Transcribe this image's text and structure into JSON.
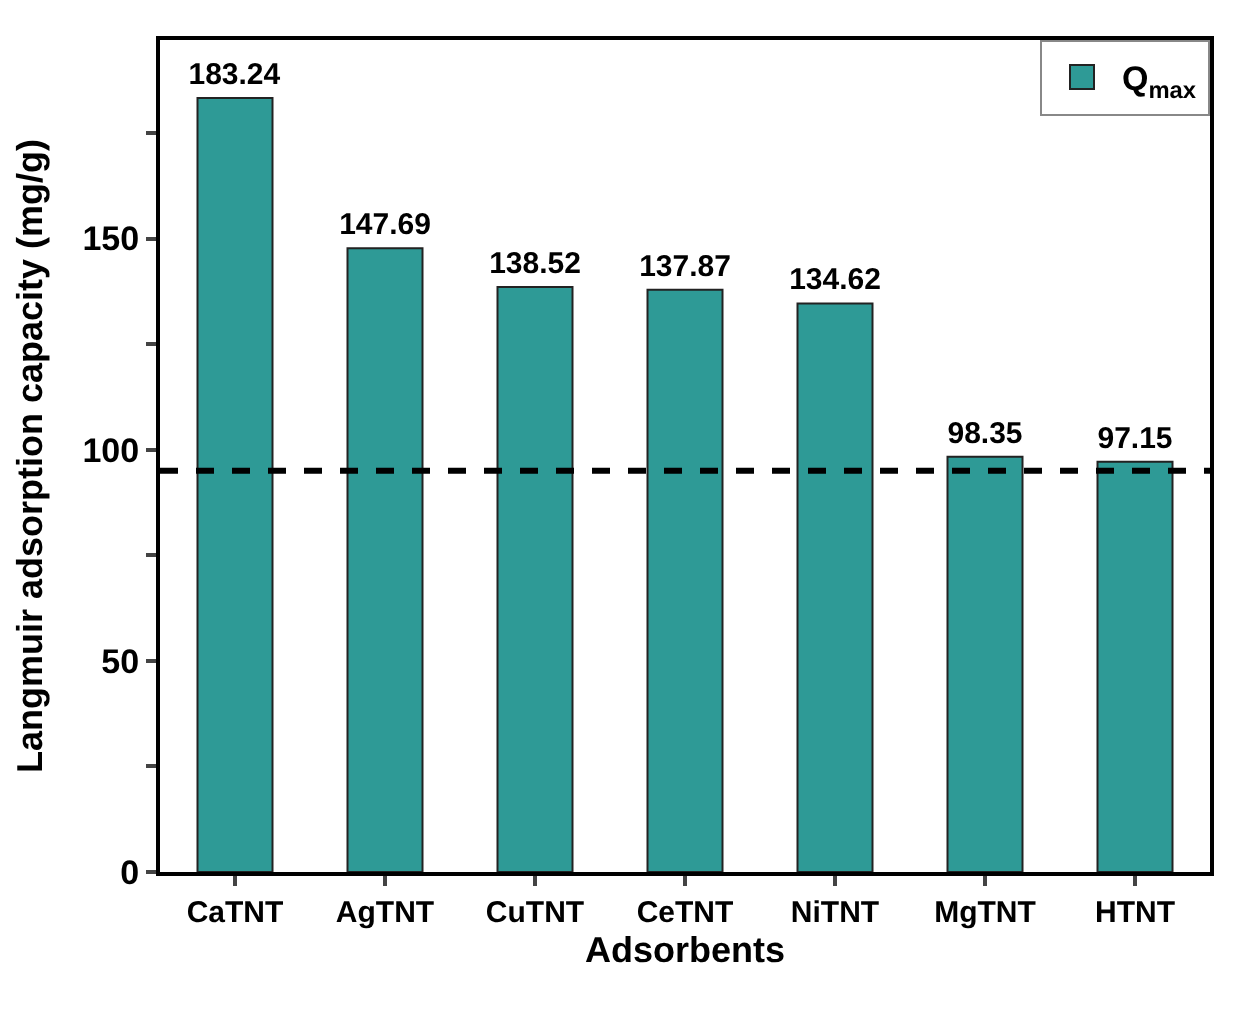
{
  "chart_data": {
    "type": "bar",
    "xlabel": "Adsorbents",
    "ylabel": "Langmuir adsorption capacity (mg/g)",
    "categories": [
      "CaTNT",
      "AgTNT",
      "CuTNT",
      "CeTNT",
      "NiTNT",
      "MgTNT",
      "HTNT"
    ],
    "series": [
      {
        "name": "Q$_{max}$",
        "color": "#2e9a96",
        "values": [
          183.24,
          147.69,
          138.52,
          137.87,
          134.62,
          98.35,
          97.15
        ]
      }
    ],
    "data_labels": true,
    "ylim": [
      0,
      197
    ],
    "yticks": [
      0,
      {
        "value": 25,
        "label": null
      },
      50,
      {
        "value": 75,
        "label": null
      },
      100,
      {
        "value": 125,
        "label": null
      },
      150,
      {
        "value": 175,
        "label": null
      }
    ],
    "ref_lines": [
      {
        "axis": "y",
        "value": 95,
        "color": "#000000",
        "line_style": "dashed"
      }
    ],
    "legend": "top right"
  }
}
